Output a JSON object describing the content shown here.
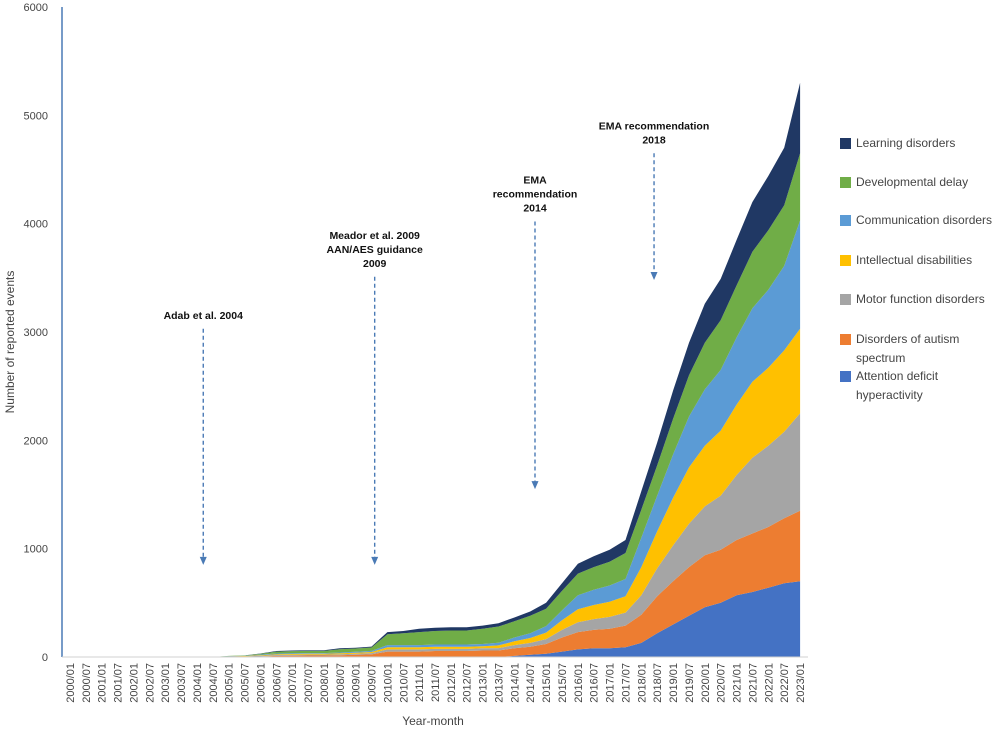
{
  "chart_data": {
    "type": "area",
    "stacked": true,
    "xlabel": "Year-month",
    "ylabel": "Number of reported events",
    "ylim": [
      0,
      6000
    ],
    "yticks": [
      0,
      1000,
      2000,
      3000,
      4000,
      5000,
      6000
    ],
    "categories": [
      "2000/01",
      "2000/07",
      "2001/01",
      "2001/07",
      "2002/01",
      "2002/07",
      "2003/01",
      "2003/07",
      "2004/01",
      "2004/07",
      "2005/01",
      "2005/07",
      "2006/01",
      "2006/07",
      "2007/01",
      "2007/07",
      "2008/01",
      "2008/07",
      "2009/01",
      "2009/07",
      "2010/01",
      "2010/07",
      "2011/01",
      "2011/07",
      "2012/01",
      "2012/07",
      "2013/01",
      "2013/07",
      "2014/01",
      "2014/07",
      "2015/01",
      "2015/07",
      "2016/01",
      "2016/07",
      "2017/01",
      "2017/07",
      "2018/01",
      "2018/07",
      "2019/01",
      "2019/07",
      "2020/01",
      "2020/07",
      "2021/01",
      "2021/07",
      "2022/01",
      "2022/07",
      "2023/01"
    ],
    "series": [
      {
        "name": "Attention deficit hyperactivity",
        "color": "#4472c4",
        "values": [
          0,
          0,
          0,
          0,
          0,
          0,
          0,
          0,
          0,
          0,
          0,
          0,
          0,
          0,
          0,
          0,
          0,
          0,
          0,
          0,
          0,
          0,
          0,
          0,
          0,
          0,
          0,
          0,
          10,
          20,
          30,
          50,
          70,
          80,
          80,
          90,
          130,
          220,
          300,
          380,
          460,
          500,
          570,
          600,
          640,
          680,
          700
        ]
      },
      {
        "name": "Disorders of autism spectrum",
        "color": "#ed7d31",
        "values": [
          0,
          0,
          0,
          0,
          0,
          0,
          0,
          0,
          0,
          0,
          2,
          3,
          5,
          10,
          12,
          14,
          14,
          16,
          20,
          24,
          50,
          50,
          50,
          55,
          55,
          55,
          60,
          60,
          70,
          75,
          90,
          130,
          160,
          170,
          180,
          200,
          260,
          340,
          400,
          450,
          480,
          490,
          510,
          540,
          560,
          600,
          650
        ]
      },
      {
        "name": "Motor function disorders",
        "color": "#a5a5a5",
        "values": [
          0,
          0,
          0,
          0,
          0,
          0,
          0,
          0,
          0,
          0,
          2,
          3,
          6,
          8,
          8,
          8,
          8,
          10,
          10,
          12,
          20,
          20,
          20,
          20,
          20,
          20,
          20,
          22,
          30,
          35,
          45,
          70,
          90,
          100,
          110,
          120,
          180,
          260,
          330,
          400,
          450,
          500,
          600,
          700,
          750,
          800,
          900
        ]
      },
      {
        "name": "Intellectual disabilities",
        "color": "#ffc000",
        "values": [
          0,
          0,
          0,
          0,
          0,
          0,
          0,
          0,
          0,
          0,
          2,
          3,
          6,
          8,
          8,
          8,
          8,
          8,
          10,
          10,
          20,
          20,
          20,
          20,
          20,
          20,
          20,
          25,
          35,
          45,
          60,
          90,
          120,
          130,
          140,
          150,
          260,
          340,
          440,
          520,
          560,
          600,
          650,
          700,
          720,
          750,
          780
        ]
      },
      {
        "name": "Communication disorders",
        "color": "#5b9bd5",
        "values": [
          0,
          0,
          0,
          0,
          0,
          0,
          0,
          0,
          0,
          0,
          2,
          3,
          5,
          6,
          6,
          6,
          6,
          8,
          8,
          10,
          20,
          20,
          20,
          20,
          20,
          20,
          20,
          25,
          35,
          45,
          60,
          90,
          130,
          140,
          150,
          160,
          270,
          330,
          400,
          470,
          520,
          560,
          620,
          680,
          720,
          780,
          1000
        ]
      },
      {
        "name": "Developmental delay",
        "color": "#70ad47",
        "values": [
          0,
          0,
          0,
          0,
          0,
          0,
          0,
          0,
          0,
          0,
          2,
          3,
          8,
          18,
          20,
          20,
          20,
          30,
          30,
          32,
          100,
          110,
          120,
          125,
          130,
          130,
          140,
          150,
          150,
          160,
          160,
          180,
          200,
          210,
          220,
          240,
          260,
          280,
          330,
          380,
          430,
          460,
          480,
          520,
          550,
          560,
          620
        ]
      },
      {
        "name": "Learning disorders",
        "color": "#203864",
        "values": [
          0,
          0,
          0,
          0,
          0,
          0,
          0,
          0,
          0,
          0,
          0,
          0,
          2,
          5,
          6,
          6,
          6,
          8,
          8,
          8,
          20,
          20,
          30,
          30,
          30,
          30,
          30,
          30,
          35,
          40,
          55,
          70,
          90,
          100,
          110,
          120,
          170,
          210,
          260,
          300,
          360,
          380,
          420,
          460,
          500,
          530,
          650
        ]
      }
    ],
    "annotations": [
      {
        "lines": [
          "Adab et al. 2004"
        ],
        "x_index": 8.4,
        "arrow_top": 3030,
        "arrow_bottom": 850
      },
      {
        "lines": [
          "Meador et al. 2009",
          "AAN/AES guidance",
          "2009"
        ],
        "x_index": 19.2,
        "arrow_top": 3510,
        "arrow_bottom": 850
      },
      {
        "lines": [
          "EMA",
          "recommendation",
          "2014"
        ],
        "x_index": 29.3,
        "arrow_top": 4020,
        "arrow_bottom": 1550
      },
      {
        "lines": [
          "EMA recommendation",
          "2018"
        ],
        "x_index": 36.8,
        "arrow_top": 4650,
        "arrow_bottom": 3480
      }
    ],
    "legend": {
      "position": "right",
      "entries": [
        {
          "lines": [
            "Learning disorders"
          ],
          "color": "#203864"
        },
        {
          "lines": [
            "Developmental delay"
          ],
          "color": "#70ad47"
        },
        {
          "lines": [
            "Communication disorders"
          ],
          "color": "#5b9bd5"
        },
        {
          "lines": [
            "Intellectual disabilities"
          ],
          "color": "#ffc000"
        },
        {
          "lines": [
            "Motor function disorders"
          ],
          "color": "#a5a5a5"
        },
        {
          "lines": [
            "Disorders of autism",
            "spectrum"
          ],
          "color": "#ed7d31"
        },
        {
          "lines": [
            "Attention deficit",
            "hyperactivity"
          ],
          "color": "#4472c4"
        }
      ]
    },
    "axis_color": "#4a7ab5"
  }
}
